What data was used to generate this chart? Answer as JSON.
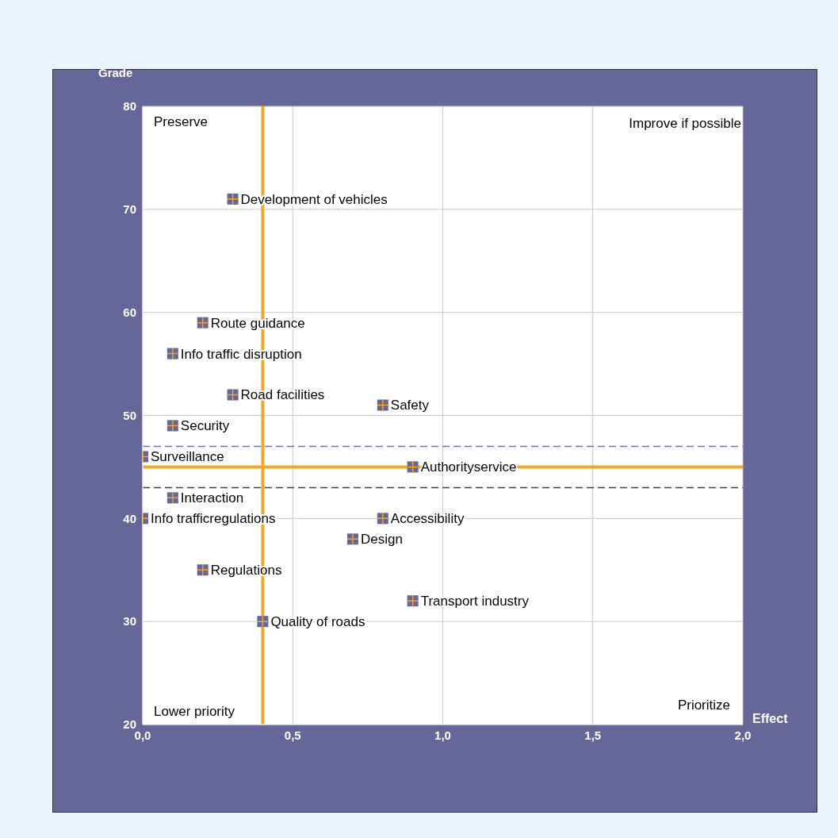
{
  "chart_data": {
    "type": "scatter",
    "xlabel": "Effect",
    "ylabel": "Grade",
    "x": [
      0.3,
      0.2,
      0.1,
      0.3,
      0.8,
      0.1,
      0.0,
      0.9,
      0.1,
      0.0,
      0.8,
      0.7,
      0.2,
      0.9,
      0.4
    ],
    "series": [
      {
        "color": "#666699",
        "values": [
          71,
          59,
          56,
          52,
          51,
          49,
          46,
          45,
          42,
          40,
          40,
          38,
          35,
          32,
          30
        ]
      }
    ],
    "marker": "square",
    "grid": true,
    "legend": false,
    "xlim": [
      0,
      2
    ],
    "xticks": [
      {
        "value": 0,
        "label": "0,0"
      },
      {
        "value": 0.5,
        "label": "0,5"
      },
      {
        "value": 1,
        "label": "1,0"
      },
      {
        "value": 1.5,
        "label": "1,5"
      },
      {
        "value": 2,
        "label": "2,0"
      }
    ],
    "ylim": [
      20,
      80
    ],
    "yticks": [
      20,
      30,
      40,
      50,
      60,
      70,
      80
    ],
    "ref_lines": [
      {
        "axis": "x",
        "value": 0.4,
        "color": "#f5a623",
        "line_style": "solid"
      },
      {
        "axis": "y",
        "value": 45,
        "color": "#f5a623",
        "line_style": "solid"
      },
      {
        "axis": "y",
        "value": 47,
        "color": "#7070b0",
        "line_style": "dashed"
      },
      {
        "axis": "y",
        "value": 43,
        "color": "#404040",
        "line_style": "dashed"
      }
    ],
    "annotations": [
      "Preserve",
      "Improve if possible",
      "Lower priority",
      "Prioritize",
      {
        "text": "Development of vehicles",
        "x": 0.3,
        "y": 71
      },
      {
        "text": "Route guidance",
        "x": 0.2,
        "y": 59
      },
      {
        "text": "Info traffic disruption",
        "x": 0.1,
        "y": 56
      },
      {
        "text": "Road facilities",
        "x": 0.3,
        "y": 52
      },
      {
        "text": "Safety",
        "x": 0.8,
        "y": 51
      },
      {
        "text": "Security",
        "x": 0.1,
        "y": 49
      },
      {
        "text": "Surveillance",
        "x": 0.0,
        "y": 46
      },
      {
        "text": "Authorityservice",
        "x": 0.9,
        "y": 45
      },
      {
        "text": "Interaction",
        "x": 0.1,
        "y": 42
      },
      {
        "text": "Info trafficregulations",
        "x": 0.0,
        "y": 40
      },
      {
        "text": "Accessibility",
        "x": 0.8,
        "y": 40
      },
      {
        "text": "Design",
        "x": 0.7,
        "y": 38
      },
      {
        "text": "Regulations",
        "x": 0.2,
        "y": 35
      },
      {
        "text": "Transport industry",
        "x": 0.9,
        "y": 32
      },
      {
        "text": "Quality of roads",
        "x": 0.4,
        "y": 30
      }
    ]
  }
}
